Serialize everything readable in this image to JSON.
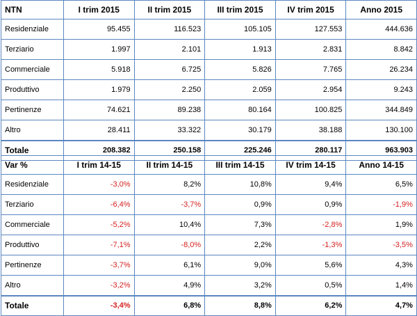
{
  "table_ntn": {
    "headers": [
      "NTN",
      "I trim 2015",
      "II trim 2015",
      "III trim 2015",
      "IV trim 2015",
      "Anno 2015"
    ],
    "rows": [
      {
        "label": "Residenziale",
        "values": [
          "95.455",
          "116.523",
          "105.105",
          "127.553",
          "444.636"
        ]
      },
      {
        "label": "Terziario",
        "values": [
          "1.997",
          "2.101",
          "1.913",
          "2.831",
          "8.842"
        ]
      },
      {
        "label": "Commerciale",
        "values": [
          "5.918",
          "6.725",
          "5.826",
          "7.765",
          "26.234"
        ]
      },
      {
        "label": "Produttivo",
        "values": [
          "1.979",
          "2.250",
          "2.059",
          "2.954",
          "9.243"
        ]
      },
      {
        "label": "Pertinenze",
        "values": [
          "74.621",
          "89.238",
          "80.164",
          "100.825",
          "344.849"
        ]
      },
      {
        "label": "Altro",
        "values": [
          "28.411",
          "33.322",
          "30.179",
          "38.188",
          "130.100"
        ]
      }
    ],
    "total": {
      "label": "Totale",
      "values": [
        "208.382",
        "250.158",
        "225.246",
        "280.117",
        "963.903"
      ]
    }
  },
  "table_var": {
    "headers": [
      "Var %",
      "I trim 14-15",
      "II trim 14-15",
      "III trim 14-15",
      "IV trim 14-15",
      "Anno 14-15"
    ],
    "rows": [
      {
        "label": "Residenziale",
        "values": [
          "-3,0%",
          "8,2%",
          "10,8%",
          "9,4%",
          "6,5%"
        ]
      },
      {
        "label": "Terziario",
        "values": [
          "-6,4%",
          "-3,7%",
          "0,9%",
          "0,9%",
          "-1,9%"
        ]
      },
      {
        "label": "Commerciale",
        "values": [
          "-5,2%",
          "10,4%",
          "7,3%",
          "-2,8%",
          "1,9%"
        ]
      },
      {
        "label": "Produttivo",
        "values": [
          "-7,1%",
          "-8,0%",
          "2,2%",
          "-1,3%",
          "-3,5%"
        ]
      },
      {
        "label": "Pertinenze",
        "values": [
          "-3,7%",
          "6,1%",
          "9,0%",
          "5,6%",
          "4,3%"
        ]
      },
      {
        "label": "Altro",
        "values": [
          "-3,2%",
          "4,9%",
          "3,2%",
          "0,5%",
          "1,4%"
        ]
      }
    ],
    "total": {
      "label": "Totale",
      "values": [
        "-3,4%",
        "6,8%",
        "8,8%",
        "6,2%",
        "4,7%"
      ]
    }
  },
  "colors": {
    "border": "#5b86c0",
    "negative": "#d62020"
  }
}
